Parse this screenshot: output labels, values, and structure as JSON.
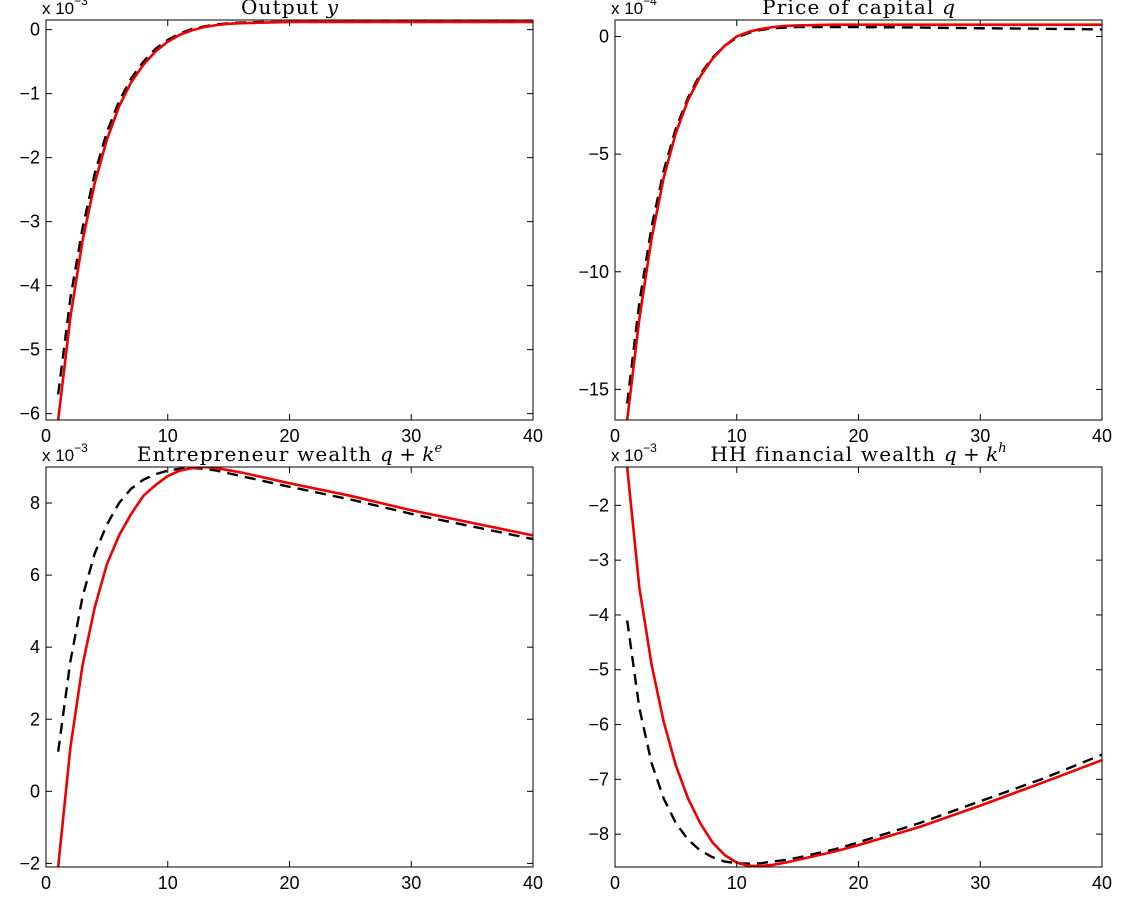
{
  "chart_data": [
    {
      "type": "line",
      "title": "Output y",
      "title_parts": {
        "text": "Output ",
        "math": "y",
        "sup": ""
      },
      "exponent": {
        "base": "x 10",
        "power": "−3"
      },
      "xlim": [
        0,
        40
      ],
      "ylim": [
        -6.1,
        0.15
      ],
      "xticks": [
        0,
        10,
        20,
        30,
        40
      ],
      "yticks": [
        -6,
        -5,
        -4,
        -3,
        -2,
        -1,
        0
      ],
      "ytick_labels": [
        "−6",
        "−5",
        "−4",
        "−3",
        "−2",
        "−1",
        "0"
      ],
      "series": [
        {
          "style": "dashed",
          "color": "#000000",
          "x": [
            1,
            2,
            3,
            4,
            5,
            6,
            7,
            8,
            9,
            10,
            11,
            12,
            13,
            14,
            15,
            16,
            18,
            20,
            22,
            25,
            30,
            35,
            40
          ],
          "y": [
            -5.7,
            -4.2,
            -3.1,
            -2.25,
            -1.6,
            -1.12,
            -0.76,
            -0.5,
            -0.3,
            -0.16,
            -0.06,
            0.01,
            0.05,
            0.08,
            0.1,
            0.11,
            0.12,
            0.12,
            0.12,
            0.12,
            0.12,
            0.12,
            0.12
          ]
        },
        {
          "style": "solid",
          "color": "#ee0000",
          "x": [
            1,
            2,
            3,
            4,
            5,
            6,
            7,
            8,
            9,
            10,
            11,
            12,
            13,
            14,
            15,
            16,
            18,
            20,
            22,
            25,
            30,
            35,
            40
          ],
          "y": [
            -6.1,
            -4.5,
            -3.3,
            -2.4,
            -1.72,
            -1.2,
            -0.82,
            -0.55,
            -0.34,
            -0.19,
            -0.08,
            -0.01,
            0.04,
            0.07,
            0.09,
            0.1,
            0.11,
            0.12,
            0.12,
            0.12,
            0.12,
            0.12,
            0.12
          ]
        }
      ]
    },
    {
      "type": "line",
      "title": "Price of capital q",
      "title_parts": {
        "text": "Price of capital ",
        "math": "q",
        "sup": ""
      },
      "exponent": {
        "base": "x 10",
        "power": "−4"
      },
      "xlim": [
        0,
        40
      ],
      "ylim": [
        -16.3,
        0.7
      ],
      "xticks": [
        0,
        10,
        20,
        30,
        40
      ],
      "yticks": [
        -15,
        -10,
        -5,
        0
      ],
      "ytick_labels": [
        "−15",
        "−10",
        "−5",
        "0"
      ],
      "series": [
        {
          "style": "dashed",
          "color": "#000000",
          "x": [
            1,
            2,
            3,
            4,
            5,
            6,
            7,
            8,
            9,
            10,
            11,
            12,
            13,
            14,
            15,
            16,
            18,
            20,
            25,
            30,
            35,
            40
          ],
          "y": [
            -15.6,
            -11.3,
            -8.1,
            -5.7,
            -3.9,
            -2.6,
            -1.6,
            -0.9,
            -0.4,
            -0.05,
            0.15,
            0.28,
            0.35,
            0.38,
            0.4,
            0.4,
            0.4,
            0.4,
            0.38,
            0.35,
            0.33,
            0.3
          ]
        },
        {
          "style": "solid",
          "color": "#ee0000",
          "x": [
            1,
            2,
            3,
            4,
            5,
            6,
            7,
            8,
            9,
            10,
            11,
            12,
            13,
            14,
            15,
            16,
            18,
            20,
            25,
            30,
            35,
            40
          ],
          "y": [
            -16.3,
            -12.0,
            -8.6,
            -6.0,
            -4.1,
            -2.7,
            -1.7,
            -0.95,
            -0.4,
            0.0,
            0.2,
            0.32,
            0.4,
            0.45,
            0.47,
            0.48,
            0.5,
            0.5,
            0.5,
            0.5,
            0.5,
            0.5
          ]
        }
      ]
    },
    {
      "type": "line",
      "title": "Entrepreneur wealth q + k^e",
      "title_parts": {
        "text": "Entrepreneur wealth ",
        "math": "q + k",
        "sup": "e"
      },
      "exponent": {
        "base": "x 10",
        "power": "−3"
      },
      "xlim": [
        0,
        40
      ],
      "ylim": [
        -2.1,
        9.0
      ],
      "xticks": [
        0,
        10,
        20,
        30,
        40
      ],
      "yticks": [
        -2,
        0,
        2,
        4,
        6,
        8
      ],
      "ytick_labels": [
        "−2",
        "0",
        "2",
        "4",
        "6",
        "8"
      ],
      "series": [
        {
          "style": "dashed",
          "color": "#000000",
          "x": [
            1,
            2,
            3,
            4,
            5,
            6,
            7,
            8,
            9,
            10,
            11,
            12,
            13,
            14,
            16,
            18,
            20,
            25,
            30,
            35,
            40
          ],
          "y": [
            1.1,
            3.6,
            5.4,
            6.6,
            7.4,
            8.0,
            8.4,
            8.65,
            8.8,
            8.9,
            8.95,
            8.97,
            8.95,
            8.9,
            8.75,
            8.6,
            8.45,
            8.1,
            7.7,
            7.35,
            7.0
          ]
        },
        {
          "style": "solid",
          "color": "#ee0000",
          "x": [
            1,
            2,
            3,
            4,
            5,
            6,
            7,
            8,
            9,
            10,
            11,
            12,
            13,
            14,
            16,
            18,
            20,
            25,
            30,
            35,
            40
          ],
          "y": [
            -2.1,
            1.2,
            3.5,
            5.1,
            6.3,
            7.1,
            7.7,
            8.2,
            8.5,
            8.75,
            8.9,
            8.97,
            9.0,
            8.97,
            8.85,
            8.7,
            8.55,
            8.2,
            7.8,
            7.45,
            7.1
          ]
        }
      ]
    },
    {
      "type": "line",
      "title": "HH financial wealth q + k^h",
      "title_parts": {
        "text": "HH financial wealth ",
        "math": "q + k",
        "sup": "h"
      },
      "exponent": {
        "base": "x 10",
        "power": "−3"
      },
      "xlim": [
        0,
        40
      ],
      "ylim": [
        -8.6,
        -1.3
      ],
      "xticks": [
        0,
        10,
        20,
        30,
        40
      ],
      "yticks": [
        -8,
        -7,
        -6,
        -5,
        -4,
        -3,
        -2
      ],
      "ytick_labels": [
        "−8",
        "−7",
        "−6",
        "−5",
        "−4",
        "−3",
        "−2"
      ],
      "series": [
        {
          "style": "dashed",
          "color": "#000000",
          "x": [
            1,
            2,
            3,
            4,
            5,
            6,
            7,
            8,
            9,
            10,
            11,
            12,
            13,
            14,
            15,
            16,
            18,
            20,
            25,
            30,
            35,
            40
          ],
          "y": [
            -4.1,
            -5.7,
            -6.7,
            -7.35,
            -7.8,
            -8.1,
            -8.3,
            -8.42,
            -8.5,
            -8.53,
            -8.54,
            -8.53,
            -8.5,
            -8.47,
            -8.43,
            -8.38,
            -8.28,
            -8.15,
            -7.8,
            -7.4,
            -7.0,
            -6.55
          ]
        },
        {
          "style": "solid",
          "color": "#ee0000",
          "x": [
            1,
            2,
            3,
            4,
            5,
            6,
            7,
            8,
            9,
            10,
            11,
            12,
            13,
            14,
            15,
            16,
            18,
            20,
            25,
            30,
            35,
            40
          ],
          "y": [
            -1.3,
            -3.5,
            -4.9,
            -5.95,
            -6.75,
            -7.35,
            -7.8,
            -8.15,
            -8.38,
            -8.52,
            -8.58,
            -8.58,
            -8.56,
            -8.52,
            -8.47,
            -8.42,
            -8.32,
            -8.2,
            -7.87,
            -7.48,
            -7.07,
            -6.65
          ]
        }
      ]
    }
  ]
}
